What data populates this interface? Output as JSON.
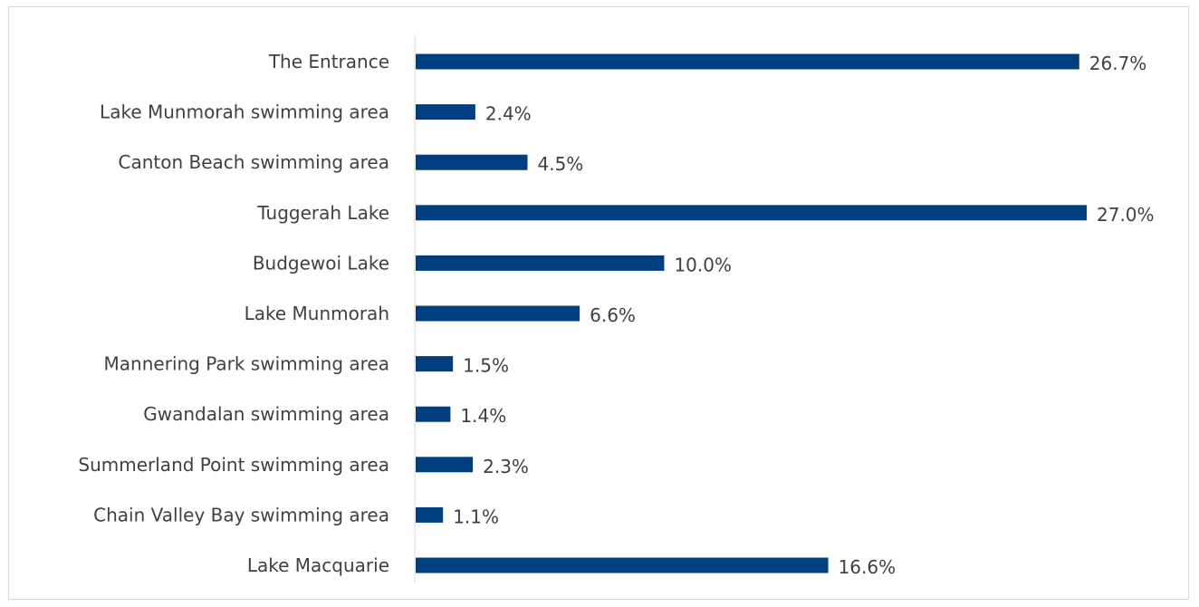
{
  "chart_data": {
    "type": "bar",
    "orientation": "horizontal",
    "categories": [
      "The Entrance",
      "Lake Munmorah swimming area",
      "Canton Beach swimming area",
      "Tuggerah Lake",
      "Budgewoi Lake",
      "Lake Munmorah",
      "Mannering Park swimming area",
      "Gwandalan swimming area",
      "Summerland Point swimming area",
      "Chain Valley Bay swimming area",
      "Lake Macquarie"
    ],
    "values": [
      26.7,
      2.4,
      4.5,
      27.0,
      10.0,
      6.6,
      1.5,
      1.4,
      2.3,
      1.1,
      16.6
    ],
    "value_labels": [
      "26.7%",
      "2.4%",
      "4.5%",
      "27.0%",
      "10.0%",
      "6.6%",
      "1.5%",
      "1.4%",
      "2.3%",
      "1.1%",
      "16.6%"
    ],
    "title": "",
    "xlabel": "",
    "ylabel": "",
    "xlim": [
      0,
      27.0
    ],
    "grid": false,
    "legend": "none",
    "bar_color": "#003f7f",
    "axis_color": "#d9d9d9",
    "text_color": "#404040"
  }
}
